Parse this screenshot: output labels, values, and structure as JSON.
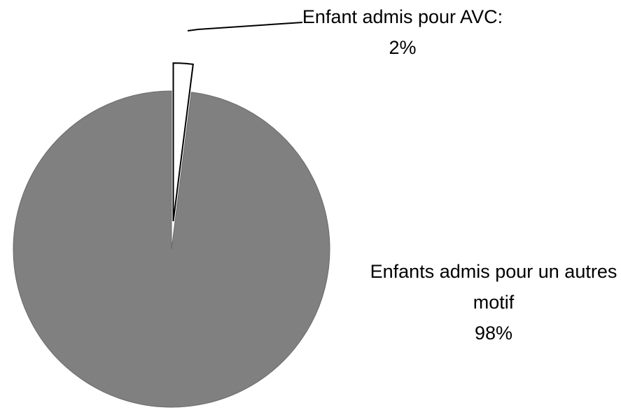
{
  "chart_data": {
    "type": "pie",
    "categories": [
      "Enfant admis pour AVC:",
      "Enfants admis pour un autres motif"
    ],
    "values": [
      2,
      98
    ],
    "value_labels": [
      "2%",
      "98%"
    ],
    "colors": [
      "#ffffff",
      "#808080"
    ]
  }
}
